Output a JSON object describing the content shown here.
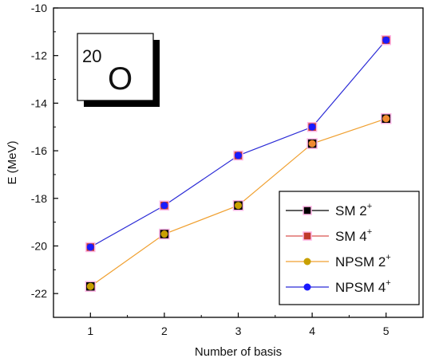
{
  "chart_data": {
    "type": "line",
    "xlabel": "Number of basis",
    "ylabel": "E (MeV)",
    "xlim": [
      0.5,
      5.5
    ],
    "ylim": [
      -23,
      -10
    ],
    "x_ticks": [
      1,
      2,
      3,
      4,
      5
    ],
    "y_ticks": [
      -22,
      -20,
      -18,
      -16,
      -14,
      -12,
      -10
    ],
    "grid": false,
    "legend_position": "bottom-right",
    "inset_label": {
      "mass_number": "20",
      "element": "O"
    },
    "x": [
      1,
      2,
      3,
      4,
      5
    ],
    "series": [
      {
        "name": "SM 2",
        "superscript": "+",
        "values": [
          -21.7,
          -19.5,
          -18.3,
          -15.7,
          -14.65
        ],
        "marker": "square",
        "marker_color": "#000000",
        "line_color": "#000000",
        "show_line": false
      },
      {
        "name": "SM 4",
        "superscript": "+",
        "values": [
          -20.05,
          -18.3,
          -16.2,
          -15.0,
          -11.35
        ],
        "marker": "square",
        "marker_color": "#c0392b",
        "line_color": "#d9534f",
        "show_line": false
      },
      {
        "name": "NPSM 2",
        "superscript": "+",
        "values": [
          -21.7,
          -19.5,
          -18.3,
          -15.7,
          -14.65
        ],
        "marker": "circle",
        "marker_color": "#c8a000",
        "line_color": "#f0a030",
        "show_line": true
      },
      {
        "name": "NPSM 4",
        "superscript": "+",
        "values": [
          -20.05,
          -18.3,
          -16.2,
          -15.0,
          -11.35
        ],
        "marker": "circle",
        "marker_color": "#1a1aff",
        "line_color": "#2b2bd6",
        "show_line": true
      }
    ]
  }
}
